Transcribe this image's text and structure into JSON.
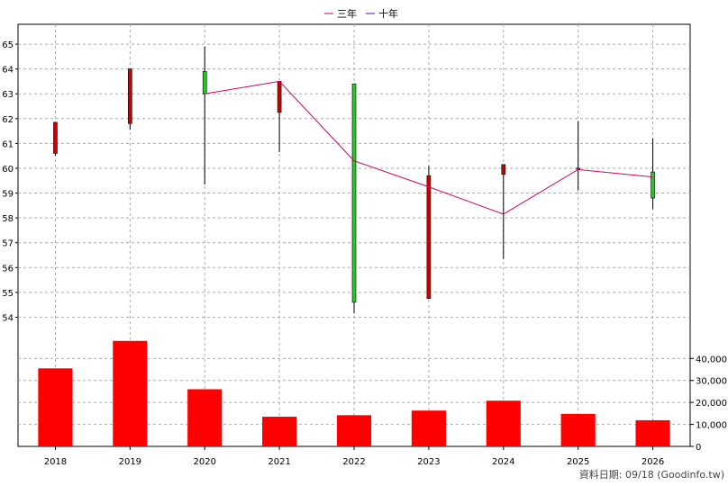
{
  "chart_data": [
    {
      "type": "candlestick",
      "categories": [
        "2018",
        "2019",
        "2020",
        "2021",
        "2022",
        "2023",
        "2024",
        "2025",
        "2026"
      ],
      "candles": [
        {
          "year": "2018",
          "open": 61.85,
          "close": 60.6,
          "high": 61.85,
          "low": 60.5,
          "color": "red"
        },
        {
          "year": "2019",
          "open": 64.0,
          "close": 61.8,
          "high": 64.0,
          "low": 61.55,
          "color": "red"
        },
        {
          "year": "2020",
          "open": 63.0,
          "close": 63.9,
          "high": 64.9,
          "low": 59.35,
          "color": "green"
        },
        {
          "year": "2021",
          "open": 63.5,
          "close": 62.25,
          "high": 63.5,
          "low": 60.65,
          "color": "red"
        },
        {
          "year": "2022",
          "open": 54.6,
          "close": 63.4,
          "high": 63.4,
          "low": 54.15,
          "color": "green"
        },
        {
          "year": "2023",
          "open": 59.7,
          "close": 54.75,
          "high": 60.1,
          "low": 54.75,
          "color": "red"
        },
        {
          "year": "2024",
          "open": 60.15,
          "close": 59.75,
          "high": 60.15,
          "low": 56.35,
          "color": "red"
        },
        {
          "year": "2025",
          "open": 60.0,
          "close": 60.0,
          "high": 61.9,
          "low": 59.1,
          "color": "green"
        },
        {
          "year": "2026",
          "open": 58.8,
          "close": 59.85,
          "high": 61.2,
          "low": 58.35,
          "color": "green"
        }
      ],
      "series": [
        {
          "name": "三年",
          "color": "#cc0066",
          "x": [
            "2020",
            "2021",
            "2022",
            "2023",
            "2024",
            "2025",
            "2026"
          ],
          "values": [
            63.0,
            63.5,
            60.3,
            59.25,
            58.15,
            59.95,
            59.65
          ]
        },
        {
          "name": "十年",
          "color": "#5500bb",
          "x": [],
          "values": []
        }
      ],
      "ylim": [
        53,
        65.8
      ],
      "yticks": [
        54,
        55,
        56,
        57,
        58,
        59,
        60,
        61,
        62,
        63,
        64,
        65
      ],
      "grid": true,
      "legend": "top-center"
    },
    {
      "type": "bar",
      "categories": [
        "2018",
        "2019",
        "2020",
        "2021",
        "2022",
        "2023",
        "2024",
        "2025",
        "2026"
      ],
      "values": [
        35500,
        48000,
        26000,
        13500,
        14200,
        16300,
        20800,
        14800,
        11900
      ],
      "color": "#ff0000",
      "ylim": [
        0,
        47500
      ],
      "yticks": [
        0,
        10000,
        20000,
        30000,
        40000
      ],
      "ytick_labels": [
        "0",
        "10,000",
        "20,000",
        "30,000",
        "40,000"
      ],
      "grid": true
    }
  ],
  "footer": {
    "credit": "資料日期: 09/18  (Goodinfo.tw)"
  }
}
